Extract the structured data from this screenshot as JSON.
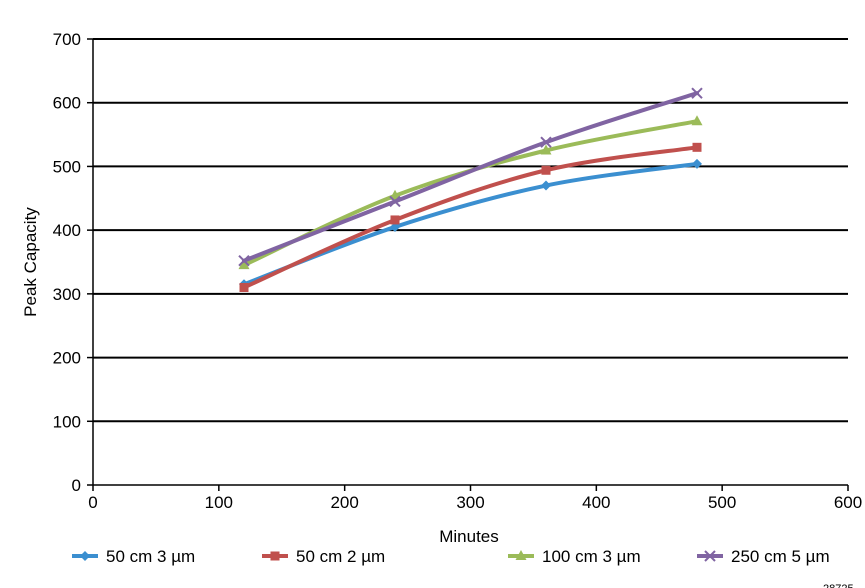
{
  "chart_data": {
    "type": "line",
    "title": "",
    "xlabel": "Minutes",
    "ylabel": "Peak Capacity",
    "xlim": [
      0,
      600
    ],
    "ylim": [
      0,
      700
    ],
    "xticks": [
      0,
      100,
      200,
      300,
      400,
      500,
      600
    ],
    "yticks": [
      0,
      100,
      200,
      300,
      400,
      500,
      600,
      700
    ],
    "grid": "horizontal",
    "legend_position": "bottom",
    "series": [
      {
        "name": "50 cm 3 µm",
        "color": "#3B8FD0",
        "marker": "diamond",
        "x": [
          120,
          240,
          360,
          480
        ],
        "y": [
          315,
          405,
          470,
          504
        ]
      },
      {
        "name": "50 cm 2 µm",
        "color": "#C0504D",
        "marker": "square",
        "x": [
          120,
          240,
          360,
          480
        ],
        "y": [
          310,
          416,
          494,
          530
        ]
      },
      {
        "name": "100 cm 3 µm",
        "color": "#9BBB59",
        "marker": "triangle",
        "x": [
          120,
          240,
          360,
          480
        ],
        "y": [
          345,
          454,
          525,
          571
        ]
      },
      {
        "name": "250 cm 5 µm",
        "color": "#8064A2",
        "marker": "x",
        "x": [
          120,
          240,
          360,
          480
        ],
        "y": [
          352,
          445,
          538,
          615
        ]
      }
    ]
  },
  "figure_id": "28725"
}
